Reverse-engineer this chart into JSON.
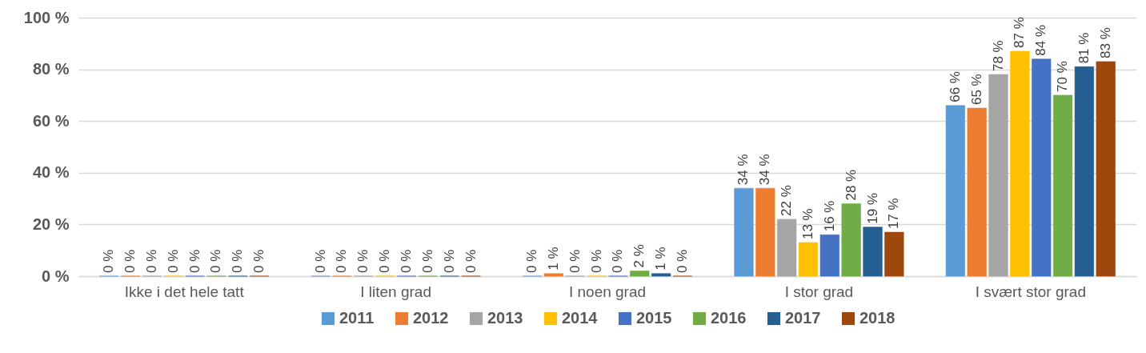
{
  "chart_data": {
    "type": "bar",
    "categories": [
      "Ikke i det hele tatt",
      "I liten grad",
      "I noen grad",
      "I stor grad",
      "I svært stor grad"
    ],
    "series": [
      {
        "name": "2011",
        "color": "#5b9bd5",
        "values": [
          0,
          0,
          0,
          34,
          66
        ],
        "value_labels": [
          "0 %",
          "0 %",
          "0 %",
          "34 %",
          "66 %"
        ]
      },
      {
        "name": "2012",
        "color": "#ed7d31",
        "values": [
          0,
          0,
          1,
          34,
          65
        ],
        "value_labels": [
          "0 %",
          "0 %",
          "1 %",
          "34 %",
          "65 %"
        ]
      },
      {
        "name": "2013",
        "color": "#a5a5a5",
        "values": [
          0,
          0,
          0,
          22,
          78
        ],
        "value_labels": [
          "0 %",
          "0 %",
          "0 %",
          "22 %",
          "78 %"
        ]
      },
      {
        "name": "2014",
        "color": "#ffc000",
        "values": [
          0,
          0,
          0,
          13,
          87
        ],
        "value_labels": [
          "0 %",
          "0 %",
          "0 %",
          "13 %",
          "87 %"
        ]
      },
      {
        "name": "2015",
        "color": "#4472c4",
        "values": [
          0,
          0,
          0,
          16,
          84
        ],
        "value_labels": [
          "0 %",
          "0 %",
          "0 %",
          "16 %",
          "84 %"
        ]
      },
      {
        "name": "2016",
        "color": "#70ad47",
        "values": [
          0,
          0,
          2,
          28,
          70
        ],
        "value_labels": [
          "0 %",
          "0 %",
          "2 %",
          "28 %",
          "70 %"
        ]
      },
      {
        "name": "2017",
        "color": "#255e91",
        "values": [
          0,
          0,
          1,
          19,
          81
        ],
        "value_labels": [
          "0 %",
          "0 %",
          "1 %",
          "19 %",
          "81 %"
        ]
      },
      {
        "name": "2018",
        "color": "#9e480e",
        "values": [
          0,
          0,
          0,
          17,
          83
        ],
        "value_labels": [
          "0 %",
          "0 %",
          "0 %",
          "17 %",
          "83 %"
        ]
      }
    ],
    "ylim": [
      0,
      100
    ],
    "yticks": [
      {
        "value": 0,
        "label": "0 %"
      },
      {
        "value": 20,
        "label": "20 %"
      },
      {
        "value": 40,
        "label": "40 %"
      },
      {
        "value": 60,
        "label": "60 %"
      },
      {
        "value": 80,
        "label": "80 %"
      },
      {
        "value": 100,
        "label": "100 %"
      }
    ],
    "grid": "y",
    "legend": "bottom"
  }
}
